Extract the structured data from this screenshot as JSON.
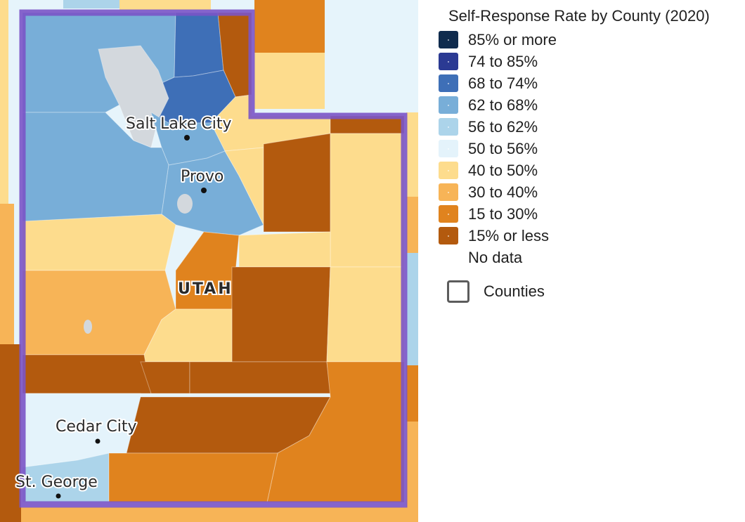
{
  "legend": {
    "title": "Self-Response Rate by County (2020)",
    "items": [
      {
        "label": "85% or more",
        "color": "#0f2b4d"
      },
      {
        "label": "74 to 85%",
        "color": "#2b3a93"
      },
      {
        "label": "68 to 74%",
        "color": "#3e6fb7"
      },
      {
        "label": "62 to 68%",
        "color": "#78aed8"
      },
      {
        "label": "56 to 62%",
        "color": "#acd4ea"
      },
      {
        "label": "50 to 56%",
        "color": "#e4f3fb"
      },
      {
        "label": "40 to 50%",
        "color": "#fddc8d"
      },
      {
        "label": "30 to 40%",
        "color": "#f7b457"
      },
      {
        "label": "15 to 30%",
        "color": "#e0831e"
      },
      {
        "label": "15% or less",
        "color": "#b35a0e"
      },
      {
        "label": "No data",
        "color": ""
      }
    ]
  },
  "layers": {
    "counties_label": "Counties",
    "counties_checked": false
  },
  "map": {
    "state_label": "UTAH",
    "state_outline_color": "#7a54c7",
    "cities": [
      "Salt Lake City",
      "Provo",
      "Cedar City",
      "St. George"
    ]
  }
}
